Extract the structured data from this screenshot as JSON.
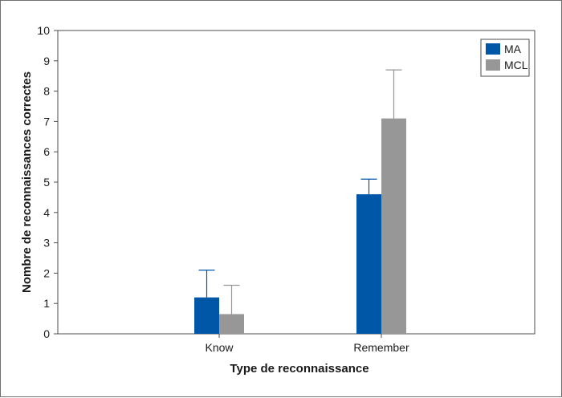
{
  "chart_data": {
    "type": "bar",
    "categories": [
      "Know",
      "Remember"
    ],
    "series": [
      {
        "name": "MA",
        "values": [
          1.2,
          4.6
        ],
        "error": [
          0.9,
          0.5
        ],
        "color": "#0057a8"
      },
      {
        "name": "MCL",
        "values": [
          0.65,
          7.1
        ],
        "error": [
          0.95,
          1.6
        ],
        "color": "#979797"
      }
    ],
    "xlabel": "Type de reconnaissance",
    "ylabel": "Nombre de reconnaissances correctes",
    "ylim": [
      0,
      10
    ],
    "yticks": [
      "0",
      "1",
      "2",
      "3",
      "4",
      "5",
      "6",
      "7",
      "8",
      "9",
      "10"
    ],
    "grid": false,
    "legend_position": "top-right"
  }
}
